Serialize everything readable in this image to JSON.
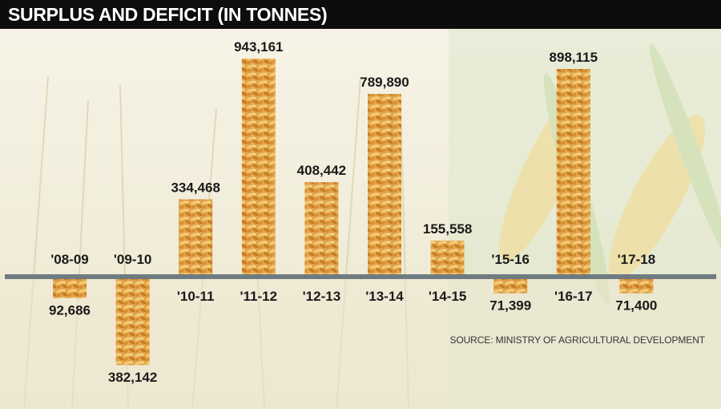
{
  "title": "SURPLUS AND DEFICIT (IN TONNES)",
  "source": "SOURCE: MINISTRY OF AGRICULTURAL DEVELOPMENT",
  "colors": {
    "title_bar": "#0d0d0d",
    "baseline": "#6e7b81",
    "grain_light": "#f1c26a",
    "grain_dark": "#c67a22",
    "text": "#1a1a1a"
  },
  "chart_data": {
    "type": "bar",
    "title": "SURPLUS AND DEFICIT (IN TONNES)",
    "xlabel": "",
    "ylabel": "",
    "grid": false,
    "legend": "none",
    "categories": [
      "'08-09",
      "'09-10",
      "'10-11",
      "'11-12",
      "'12-13",
      "'13-14",
      "'14-15",
      "'15-16",
      "'16-17",
      "'17-18"
    ],
    "values": [
      -92686,
      -382142,
      334468,
      943161,
      408442,
      789890,
      155558,
      -71399,
      898115,
      -71400
    ],
    "value_labels": [
      "92,686",
      "382,142",
      "334,468",
      "943,161",
      "408,442",
      "789,890",
      "155,558",
      "71,399",
      "898,115",
      "71,400"
    ],
    "ylim": [
      -400000,
      1000000
    ]
  }
}
